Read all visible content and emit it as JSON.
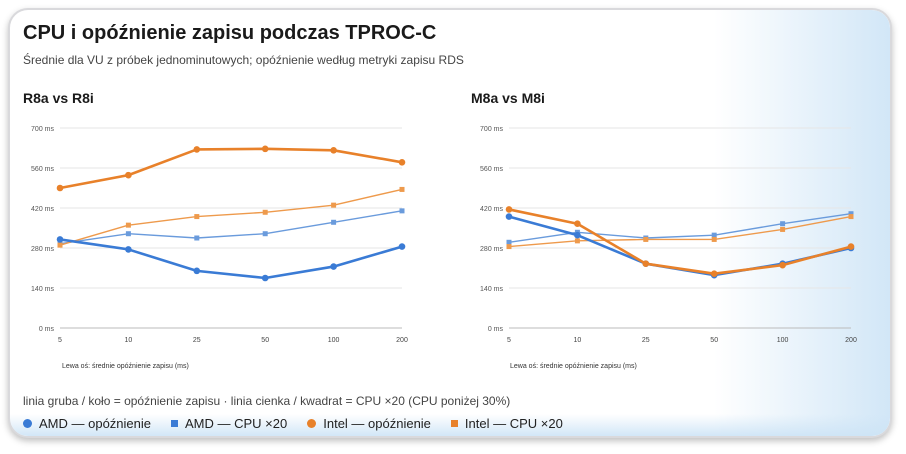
{
  "title": "CPU i opóźnienie zapisu podczas TPROC-C",
  "subtitle": "Średnie dla VU z próbek jednominutowych; opóźnienie według metryki zapisu RDS",
  "note": "linia gruba / koło = opóźnienie zapisu · linia cienka / kwadrat = CPU ×20 (CPU poniżej 30%)",
  "colors": {
    "amd": "#3a7bd5",
    "intel": "#e8812a",
    "amd_light": "#6a9bdc",
    "intel_light": "#ee9a4c"
  },
  "legend": [
    {
      "label": "AMD — opóźnienie",
      "marker": "circle",
      "color": "#3a7bd5"
    },
    {
      "label": "AMD — CPU ×20",
      "marker": "square",
      "color": "#3a7bd5"
    },
    {
      "label": "Intel — opóźnienie",
      "marker": "circle",
      "color": "#e8812a"
    },
    {
      "label": "Intel — CPU ×20",
      "marker": "square",
      "color": "#e8812a"
    }
  ],
  "chart_data": [
    {
      "type": "line",
      "title": "R8a vs R8i",
      "xlabel": "Lewa oś: średnie opóźnienie zapisu (ms)",
      "categories": [
        "5",
        "10",
        "25",
        "50",
        "100",
        "200"
      ],
      "ylim": [
        0,
        700
      ],
      "yticks": [
        0,
        140,
        280,
        420,
        560,
        700
      ],
      "ytick_labels": [
        "0 ms",
        "140 ms",
        "280 ms",
        "420 ms",
        "560 ms",
        "700 ms"
      ],
      "series": [
        {
          "name": "AMD — opóźnienie",
          "vendor": "amd",
          "kind": "latency",
          "values": [
            310,
            275,
            200,
            175,
            215,
            285
          ]
        },
        {
          "name": "AMD — CPU ×20",
          "vendor": "amd",
          "kind": "cpu",
          "values": [
            295,
            330,
            315,
            330,
            370,
            410
          ]
        },
        {
          "name": "Intel — opóźnienie",
          "vendor": "intel",
          "kind": "latency",
          "values": [
            490,
            535,
            625,
            627,
            622,
            580
          ]
        },
        {
          "name": "Intel — CPU ×20",
          "vendor": "intel",
          "kind": "cpu",
          "values": [
            290,
            360,
            390,
            405,
            430,
            485
          ]
        }
      ]
    },
    {
      "type": "line",
      "title": "M8a vs M8i",
      "xlabel": "Lewa oś: średnie opóźnienie zapisu (ms)",
      "categories": [
        "5",
        "10",
        "25",
        "50",
        "100",
        "200"
      ],
      "ylim": [
        0,
        700
      ],
      "yticks": [
        0,
        140,
        280,
        420,
        560,
        700
      ],
      "ytick_labels": [
        "0 ms",
        "140 ms",
        "280 ms",
        "420 ms",
        "560 ms",
        "700 ms"
      ],
      "series": [
        {
          "name": "AMD — opóźnienie",
          "vendor": "amd",
          "kind": "latency",
          "values": [
            390,
            325,
            225,
            185,
            225,
            280
          ]
        },
        {
          "name": "AMD — CPU ×20",
          "vendor": "amd",
          "kind": "cpu",
          "values": [
            300,
            335,
            315,
            325,
            365,
            400
          ]
        },
        {
          "name": "Intel — opóźnienie",
          "vendor": "intel",
          "kind": "latency",
          "values": [
            415,
            365,
            225,
            190,
            220,
            285
          ]
        },
        {
          "name": "Intel — CPU ×20",
          "vendor": "intel",
          "kind": "cpu",
          "values": [
            285,
            305,
            310,
            310,
            345,
            390
          ]
        }
      ]
    }
  ]
}
